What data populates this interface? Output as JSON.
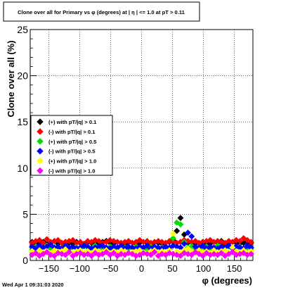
{
  "chart_data": {
    "type": "scatter",
    "title": "Clone  over all for Primary vs φ (degrees) at | η | <= 1.0 at pT > 0.11",
    "xlabel": "φ (degrees)",
    "ylabel": "Clone  over all (%)",
    "xlim": [
      -180,
      180
    ],
    "ylim": [
      0,
      25
    ],
    "x_ticks": [
      -150,
      -100,
      -50,
      0,
      50,
      100,
      150
    ],
    "x_tick_labels": [
      "−150",
      "−100",
      "−50",
      "0",
      "50",
      "100",
      "150"
    ],
    "y_ticks": [
      0,
      5,
      10,
      15,
      20,
      25
    ],
    "y_tick_labels": [
      "0",
      "5",
      "10",
      "15",
      "20",
      "25"
    ],
    "grid": true,
    "legend_position": "middle-left",
    "x_bins": [
      -177,
      -171,
      -165,
      -159,
      -153,
      -147,
      -141,
      -135,
      -129,
      -123,
      -117,
      -111,
      -105,
      -99,
      -93,
      -87,
      -81,
      -75,
      -69,
      -63,
      -57,
      -51,
      -45,
      -39,
      -33,
      -27,
      -21,
      -15,
      -9,
      -3,
      3,
      9,
      15,
      21,
      27,
      33,
      39,
      45,
      51,
      57,
      63,
      69,
      75,
      81,
      87,
      93,
      99,
      105,
      111,
      117,
      123,
      129,
      135,
      141,
      147,
      153,
      159,
      165,
      171,
      177
    ],
    "series": [
      {
        "name": "(+) with pT/|q| > 0.1",
        "color": "#000000",
        "values": [
          2.0,
          1.8,
          1.9,
          2.0,
          1.8,
          1.9,
          2.1,
          1.8,
          1.9,
          2.0,
          1.9,
          1.8,
          2.0,
          1.9,
          1.8,
          2.0,
          1.9,
          1.9,
          1.8,
          2.0,
          2.1,
          1.9,
          1.8,
          2.0,
          1.9,
          1.8,
          2.0,
          1.9,
          1.8,
          1.9,
          2.0,
          1.9,
          1.8,
          2.0,
          1.9,
          1.8,
          1.9,
          2.0,
          2.2,
          3.2,
          4.6,
          2.8,
          1.9,
          2.0,
          1.8,
          1.9,
          2.0,
          1.9,
          1.8,
          2.0,
          1.9,
          2.1,
          1.8,
          1.9,
          2.0,
          1.9,
          1.8,
          1.9,
          2.0,
          1.9
        ]
      },
      {
        "name": "(-) with pT/|q| > 0.1",
        "color": "#ff0000",
        "values": [
          1.9,
          2.1,
          2.2,
          1.9,
          2.3,
          2.0,
          2.1,
          2.2,
          1.9,
          2.0,
          2.1,
          2.2,
          1.9,
          2.0,
          1.8,
          2.1,
          2.0,
          2.2,
          2.1,
          1.9,
          2.0,
          2.2,
          2.1,
          2.0,
          1.9,
          2.0,
          2.1,
          1.9,
          2.0,
          2.2,
          2.0,
          2.1,
          1.9,
          2.0,
          2.1,
          2.0,
          1.9,
          2.1,
          2.0,
          1.9,
          2.0,
          2.2,
          2.1,
          2.0,
          2.1,
          1.9,
          2.0,
          2.1,
          2.2,
          2.0,
          2.1,
          2.0,
          1.9,
          2.1,
          2.0,
          2.2,
          2.1,
          2.4,
          2.2,
          2.0
        ]
      },
      {
        "name": "(+) with pT/|q| > 0.5",
        "color": "#00dd00",
        "values": [
          1.4,
          1.5,
          1.3,
          1.4,
          1.6,
          1.3,
          1.4,
          1.5,
          1.3,
          1.4,
          1.2,
          1.5,
          1.4,
          1.3,
          1.5,
          1.4,
          1.3,
          1.6,
          1.2,
          1.4,
          1.3,
          1.5,
          1.4,
          1.3,
          1.5,
          1.4,
          1.3,
          1.4,
          1.5,
          1.3,
          1.4,
          1.2,
          1.5,
          1.4,
          1.3,
          1.4,
          1.5,
          1.3,
          2.4,
          4.1,
          3.9,
          2.0,
          1.4,
          1.5,
          1.3,
          1.4,
          1.2,
          1.5,
          1.3,
          1.4,
          1.6,
          1.3,
          1.4,
          1.5,
          1.3,
          1.4,
          1.5,
          1.3,
          1.4,
          1.3
        ]
      },
      {
        "name": "(-) with pT/|q| > 0.5",
        "color": "#0000ff",
        "values": [
          1.5,
          1.3,
          1.6,
          1.4,
          1.5,
          1.7,
          1.4,
          1.5,
          1.3,
          1.6,
          1.4,
          1.5,
          1.3,
          1.4,
          1.6,
          1.5,
          1.3,
          1.4,
          1.5,
          1.6,
          1.4,
          1.3,
          1.5,
          1.4,
          1.6,
          1.3,
          1.5,
          1.4,
          1.3,
          1.5,
          1.4,
          1.6,
          1.3,
          1.5,
          1.4,
          1.3,
          1.5,
          1.4,
          1.6,
          1.5,
          1.4,
          1.8,
          3.0,
          2.6,
          1.5,
          1.4,
          1.6,
          1.3,
          1.5,
          1.4,
          1.3,
          1.5,
          1.4,
          1.6,
          1.3,
          1.5,
          1.4,
          1.3,
          1.6,
          1.4
        ]
      },
      {
        "name": "(+) with pT/|q| > 1.0",
        "color": "#ffff00",
        "values": [
          1.0,
          0.8,
          1.1,
          0.9,
          1.0,
          0.8,
          1.1,
          0.9,
          1.0,
          1.2,
          0.9,
          0.8,
          1.0,
          1.1,
          0.9,
          1.0,
          0.8,
          1.1,
          1.0,
          0.9,
          1.1,
          0.8,
          1.0,
          0.9,
          1.1,
          1.0,
          0.8,
          0.9,
          1.0,
          1.1,
          0.9,
          0.8,
          1.0,
          1.1,
          0.9,
          1.0,
          0.8,
          1.1,
          2.9,
          1.0,
          0.9,
          1.1,
          1.3,
          1.0,
          0.8,
          1.1,
          0.9,
          1.0,
          0.8,
          1.1,
          0.9,
          1.0,
          1.1,
          0.8,
          1.4,
          1.0,
          0.9,
          1.1,
          0.8,
          1.0
        ]
      },
      {
        "name": "(-) with pT/|q| > 1.0",
        "color": "#ff00ff",
        "values": [
          0.6,
          0.8,
          0.5,
          0.7,
          0.9,
          0.6,
          0.5,
          0.8,
          0.7,
          0.6,
          0.9,
          0.5,
          0.7,
          0.8,
          0.6,
          0.7,
          0.5,
          0.8,
          0.6,
          0.7,
          0.9,
          0.6,
          0.8,
          0.5,
          0.7,
          0.6,
          0.8,
          0.7,
          0.5,
          0.6,
          0.8,
          0.7,
          0.6,
          0.9,
          0.5,
          0.7,
          0.6,
          0.8,
          0.7,
          0.6,
          0.5,
          0.8,
          0.7,
          0.6,
          0.9,
          0.7,
          0.5,
          0.8,
          0.6,
          0.7,
          0.6,
          0.8,
          0.5,
          0.7,
          0.9,
          0.6,
          0.7,
          0.8,
          0.6,
          0.7
        ]
      }
    ]
  },
  "timestamp": "Wed Apr  1 09:31:03 2020"
}
